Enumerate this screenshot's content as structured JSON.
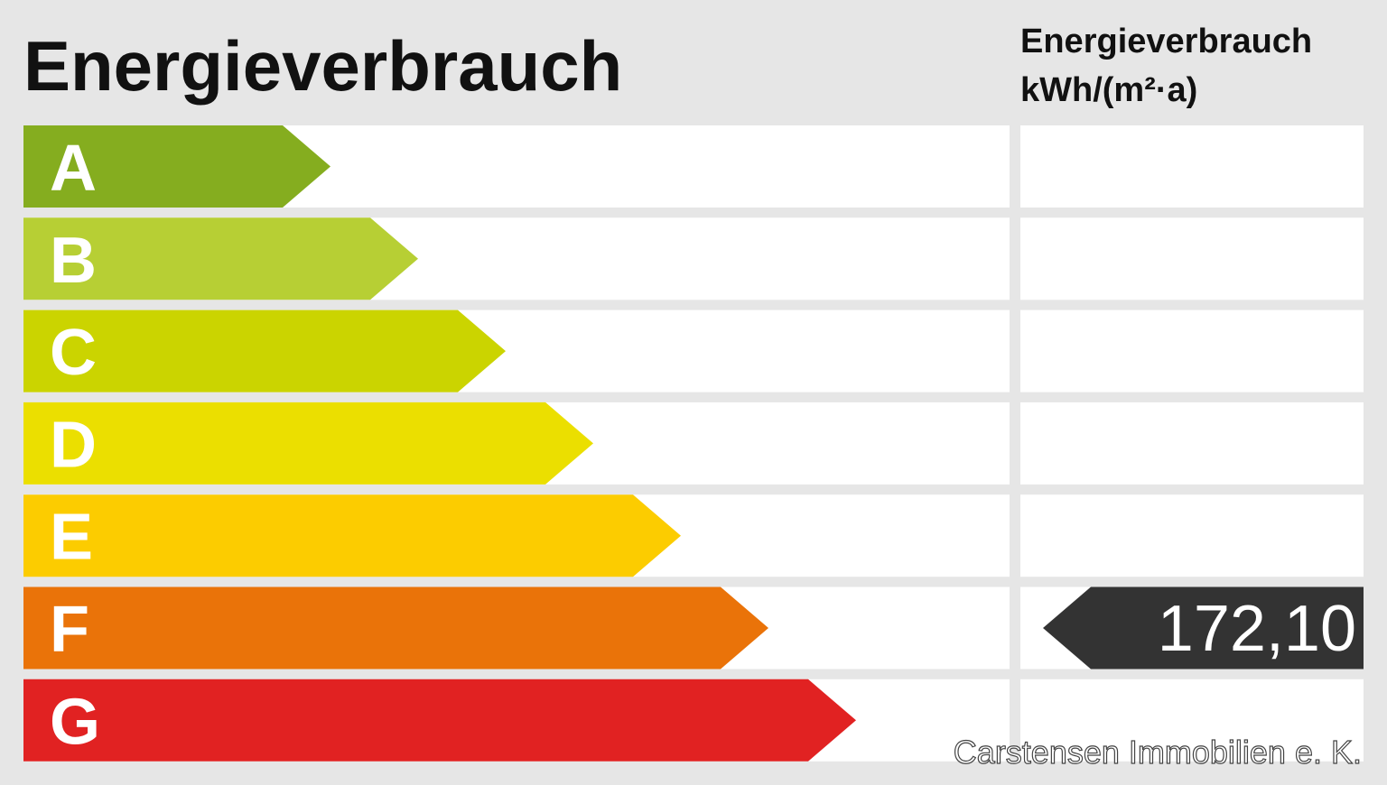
{
  "title": "Energieverbrauch",
  "unit_header": [
    "Energieverbrauch",
    "kWh/(m²·a)"
  ],
  "classes": [
    {
      "label": "A",
      "color": "#85ad1f"
    },
    {
      "label": "B",
      "color": "#b7cf34"
    },
    {
      "label": "C",
      "color": "#cbd400"
    },
    {
      "label": "D",
      "color": "#ebdf00"
    },
    {
      "label": "E",
      "color": "#fccc00"
    },
    {
      "label": "F",
      "color": "#ea7309"
    },
    {
      "label": "G",
      "color": "#e12222"
    }
  ],
  "value": "172,10",
  "watermark": "Carstensen Immobilien e. K."
}
